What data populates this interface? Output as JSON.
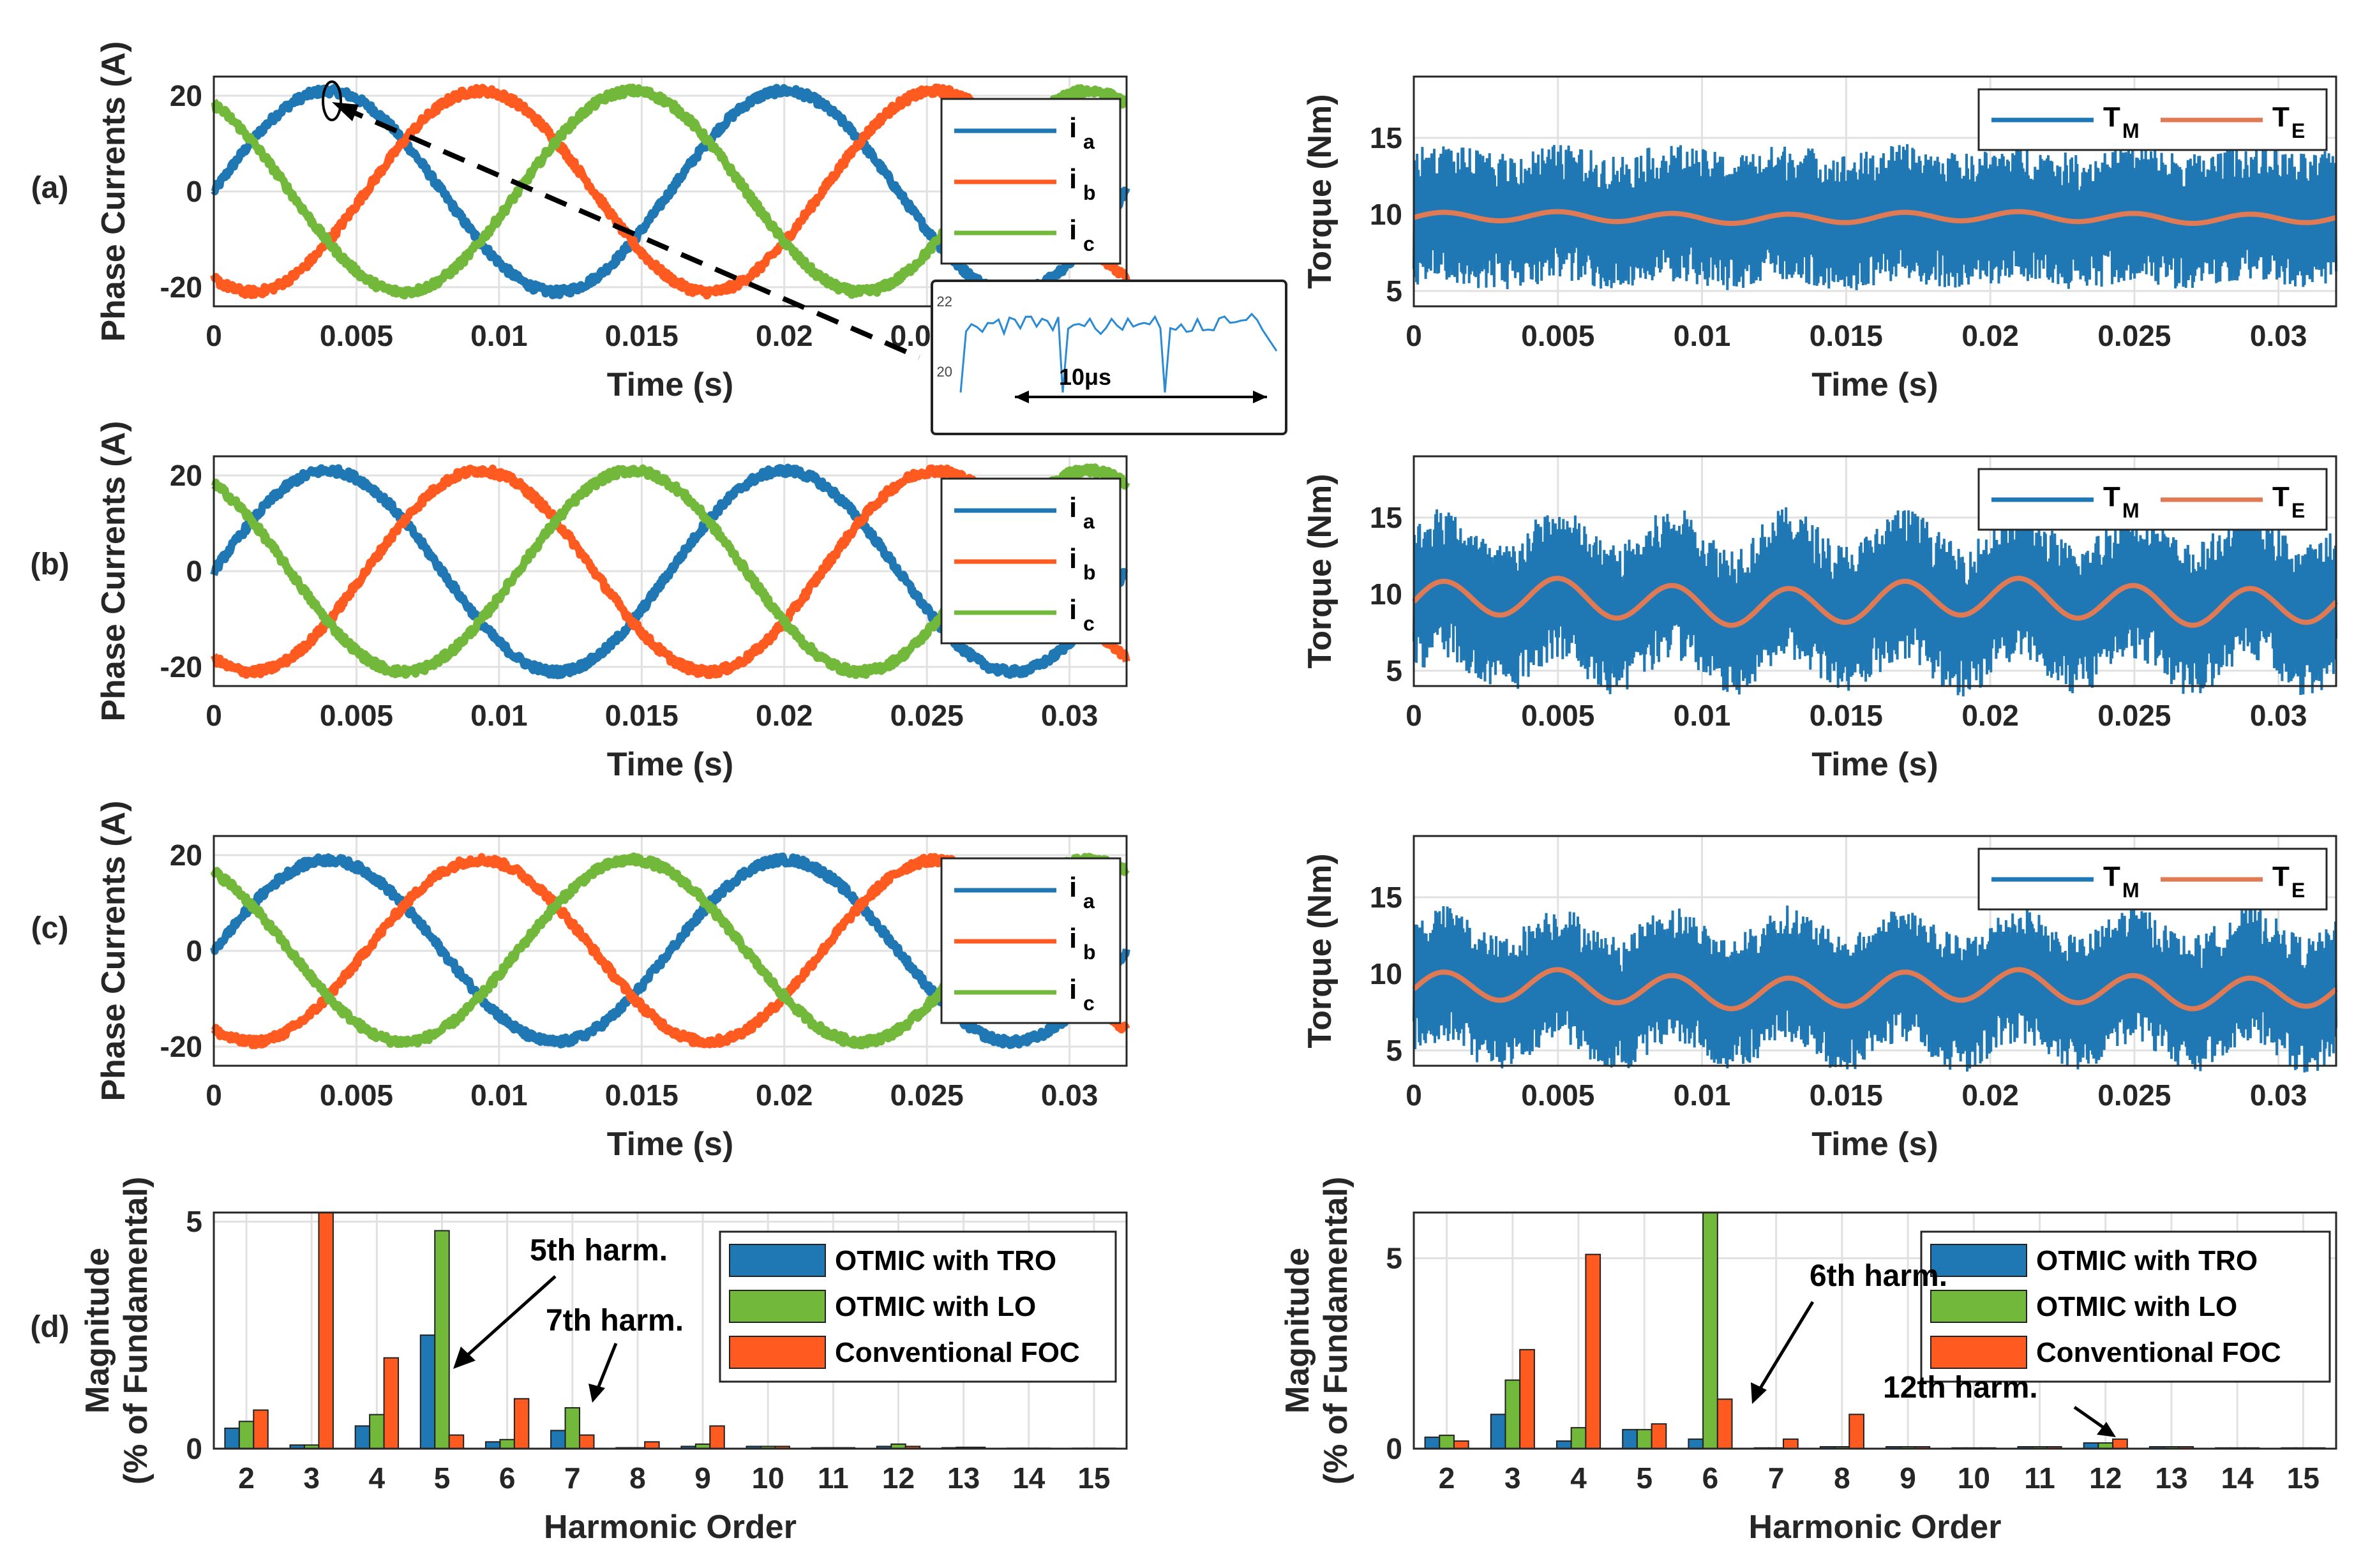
{
  "colors": {
    "blue": "#1f77b4",
    "orange": "#ff5a1f",
    "green": "#72b83b",
    "torque_mean": "#e07a55",
    "grid": "#e1e1e1",
    "axis": "#262626"
  },
  "row_labels": [
    "(a)",
    "(b)",
    "(c)",
    "(d)"
  ],
  "current_axes": {
    "ylabel": "Phase Currents (A)",
    "xlabel": "Time (s)",
    "xlim": [
      0,
      0.032
    ],
    "ylim": [
      -24,
      24
    ],
    "xticks": [
      "0",
      "0.005",
      "0.01",
      "0.015",
      "0.02",
      "0.025",
      "0.03"
    ],
    "yticks": [
      "20",
      "0",
      "-20"
    ],
    "legend": {
      "i_a": "i",
      "i_a_sub": "a",
      "i_b": "i",
      "i_b_sub": "b",
      "i_c": "i",
      "i_c_sub": "c"
    }
  },
  "torque_axes": {
    "ylabel": "Torque (Nm)",
    "xlabel": "Time (s)",
    "xlim": [
      0,
      0.032
    ],
    "ylim": [
      4,
      19
    ],
    "xticks": [
      "0",
      "0.005",
      "0.01",
      "0.015",
      "0.02",
      "0.025",
      "0.03"
    ],
    "yticks": [
      "15",
      "10",
      "5"
    ],
    "legend": {
      "tm": "T",
      "tm_sub": "M",
      "te": "T",
      "te_sub": "E"
    }
  },
  "inset": {
    "ytick_top": "22",
    "ytick_mid": "20",
    "label": "10μs",
    "hidden_xtick": "0.0"
  },
  "harmonic_axes": {
    "ylabel_line1": "Magnitude",
    "ylabel_line2": "(% of Fundamental)",
    "xlabel": "Harmonic Order",
    "xtick_labels": [
      "2",
      "3",
      "4",
      "5",
      "6",
      "7",
      "8",
      "9",
      "10",
      "11",
      "12",
      "13",
      "14",
      "15"
    ],
    "legend": [
      "OTMIC with TRO",
      "OTMIC with LO",
      "Conventional FOC"
    ]
  },
  "chart_data": [
    {
      "panel": "a-currents",
      "type": "line",
      "xlabel": "Time (s)",
      "ylabel": "Phase Currents (A)",
      "xlim": [
        0,
        0.032
      ],
      "ylim": [
        -24,
        24
      ],
      "series": [
        {
          "name": "i_a",
          "amplitude": 21,
          "frequency_hz": 62.5,
          "phase_deg": 0
        },
        {
          "name": "i_b",
          "amplitude": 21,
          "frequency_hz": 62.5,
          "phase_deg": -120
        },
        {
          "name": "i_c",
          "amplitude": 21,
          "frequency_hz": 62.5,
          "phase_deg": 120
        }
      ]
    },
    {
      "panel": "a-torque",
      "type": "line",
      "xlabel": "Time (s)",
      "ylabel": "Torque (Nm)",
      "xlim": [
        0,
        0.032
      ],
      "ylim": [
        4,
        19
      ],
      "series": [
        {
          "name": "T_M",
          "mean": 9.8,
          "ripple_pk": 4.5
        },
        {
          "name": "T_E",
          "mean": 9.8,
          "ripple_pk": 0.3
        }
      ]
    },
    {
      "panel": "b-currents",
      "type": "line",
      "xlabel": "Time (s)",
      "ylabel": "Phase Currents (A)",
      "xlim": [
        0,
        0.032
      ],
      "ylim": [
        -24,
        24
      ],
      "series": [
        {
          "name": "i_a",
          "amplitude": 21,
          "frequency_hz": 62.5,
          "phase_deg": 0
        },
        {
          "name": "i_b",
          "amplitude": 21,
          "frequency_hz": 62.5,
          "phase_deg": -120
        },
        {
          "name": "i_c",
          "amplitude": 21,
          "frequency_hz": 62.5,
          "phase_deg": 120
        }
      ]
    },
    {
      "panel": "b-torque",
      "type": "line",
      "xlabel": "Time (s)",
      "ylabel": "Torque (Nm)",
      "xlim": [
        0,
        0.032
      ],
      "ylim": [
        4,
        19
      ],
      "series": [
        {
          "name": "T_M",
          "mean": 9.5,
          "ripple_pk": 5
        },
        {
          "name": "T_E",
          "mean": 9.5,
          "ripple_pk": 1.2
        }
      ]
    },
    {
      "panel": "c-currents",
      "type": "line",
      "xlabel": "Time (s)",
      "ylabel": "Phase Currents (A)",
      "xlim": [
        0,
        0.032
      ],
      "ylim": [
        -24,
        24
      ],
      "series": [
        {
          "name": "i_a",
          "amplitude": 19,
          "frequency_hz": 62.5,
          "phase_deg": 0
        },
        {
          "name": "i_b",
          "amplitude": 19,
          "frequency_hz": 62.5,
          "phase_deg": -120
        },
        {
          "name": "i_c",
          "amplitude": 19,
          "frequency_hz": 62.5,
          "phase_deg": 120
        }
      ]
    },
    {
      "panel": "c-torque",
      "type": "line",
      "xlabel": "Time (s)",
      "ylabel": "Torque (Nm)",
      "xlim": [
        0,
        0.032
      ],
      "ylim": [
        4,
        19
      ],
      "series": [
        {
          "name": "T_M",
          "mean": 9,
          "ripple_pk": 4.5
        },
        {
          "name": "T_E",
          "mean": 9,
          "ripple_pk": 1
        }
      ]
    },
    {
      "panel": "d-current-harmonics",
      "type": "bar",
      "xlabel": "Harmonic Order",
      "ylabel": "Magnitude (% of Fundamental)",
      "categories": [
        "2",
        "3",
        "4",
        "5",
        "6",
        "7",
        "8",
        "9",
        "10",
        "11",
        "12",
        "13",
        "14",
        "15"
      ],
      "ylim": [
        0,
        5.2
      ],
      "yticks": [
        0,
        5
      ],
      "series": [
        {
          "name": "OTMIC with TRO",
          "values": [
            0.45,
            0.08,
            0.5,
            2.5,
            0.15,
            0.4,
            0.02,
            0.05,
            0.05,
            0.02,
            0.05,
            0.02,
            0.01,
            0.01
          ]
        },
        {
          "name": "OTMIC with LO",
          "values": [
            0.6,
            0.08,
            0.75,
            4.8,
            0.2,
            0.9,
            0.02,
            0.1,
            0.05,
            0.02,
            0.1,
            0.03,
            0.01,
            0.01
          ]
        },
        {
          "name": "Conventional FOC",
          "values": [
            0.85,
            5.2,
            2.0,
            0.3,
            1.1,
            0.3,
            0.15,
            0.5,
            0.05,
            0.02,
            0.05,
            0.03,
            0.01,
            0.01
          ]
        }
      ],
      "annotations": [
        "5th harm.",
        "7th harm."
      ]
    },
    {
      "panel": "d-torque-harmonics",
      "type": "bar",
      "xlabel": "Harmonic Order",
      "ylabel": "Magnitude (% of Fundamental)",
      "categories": [
        "2",
        "3",
        "4",
        "5",
        "6",
        "7",
        "8",
        "9",
        "10",
        "11",
        "12",
        "13",
        "14",
        "15"
      ],
      "ylim": [
        0,
        6.2
      ],
      "yticks": [
        0,
        5
      ],
      "series": [
        {
          "name": "OTMIC with TRO",
          "values": [
            0.3,
            0.9,
            0.2,
            0.5,
            0.25,
            0.02,
            0.05,
            0.05,
            0.02,
            0.05,
            0.15,
            0.05,
            0.02,
            0.02
          ]
        },
        {
          "name": "OTMIC with LO",
          "values": [
            0.35,
            1.8,
            0.55,
            0.5,
            6.2,
            0.02,
            0.05,
            0.05,
            0.02,
            0.05,
            0.15,
            0.05,
            0.02,
            0.02
          ]
        },
        {
          "name": "Conventional FOC",
          "values": [
            0.2,
            2.6,
            5.1,
            0.65,
            1.3,
            0.25,
            0.9,
            0.05,
            0.02,
            0.05,
            0.25,
            0.05,
            0.02,
            0.02
          ]
        }
      ],
      "annotations": [
        "6th harm.",
        "12th harm."
      ]
    }
  ]
}
